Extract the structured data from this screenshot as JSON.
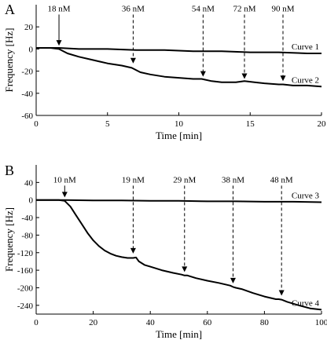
{
  "chart_data": [
    {
      "type": "line",
      "panel": "A",
      "xlabel": "Time [min]",
      "ylabel": "Frequency [Hz]",
      "xlim": [
        0,
        20
      ],
      "ylim": [
        -60,
        40
      ],
      "xticks": [
        0,
        5,
        10,
        15,
        20
      ],
      "yticks": [
        -60,
        -40,
        -20,
        0,
        20
      ],
      "series": [
        {
          "name": "Curve 1",
          "x": [
            0,
            1.0,
            1.6,
            3,
            5,
            7,
            9,
            11,
            13,
            15,
            17,
            19,
            20
          ],
          "y": [
            1,
            1,
            1,
            0,
            0,
            -1,
            -1,
            -2,
            -2,
            -3,
            -3,
            -4,
            -4
          ]
        },
        {
          "name": "Curve 2",
          "x": [
            0,
            1.0,
            1.6,
            2.2,
            3,
            4,
            5,
            6,
            6.7,
            7.3,
            8,
            9,
            10,
            11,
            11.6,
            12.3,
            13,
            14,
            14.6,
            15.3,
            16,
            17,
            17.3,
            18,
            19,
            20
          ],
          "y": [
            1,
            1,
            0,
            -4,
            -7,
            -10,
            -13,
            -15,
            -17,
            -21,
            -23,
            -25,
            -26,
            -27,
            -27,
            -29,
            -30,
            -30,
            -29,
            -30,
            -31,
            -32,
            -32,
            -33,
            -33,
            -34
          ]
        }
      ],
      "annotations": [
        {
          "text": "18 nM",
          "x": 1.6,
          "y_from": 34,
          "y_to": 3,
          "style": "solid"
        },
        {
          "text": "36 nM",
          "x": 6.8,
          "y_from": 34,
          "y_to": -13,
          "style": "dashed"
        },
        {
          "text": "54 nM",
          "x": 11.7,
          "y_from": 34,
          "y_to": -25,
          "style": "dashed"
        },
        {
          "text": "72 nM",
          "x": 14.6,
          "y_from": 34,
          "y_to": -27,
          "style": "dashed"
        },
        {
          "text": "90 nM",
          "x": 17.3,
          "y_from": 34,
          "y_to": -29,
          "style": "dashed"
        }
      ]
    },
    {
      "type": "line",
      "panel": "B",
      "xlabel": "Time [min]",
      "ylabel": "Frequency [Hz]",
      "xlim": [
        0,
        100
      ],
      "ylim": [
        -260,
        80
      ],
      "xticks": [
        0,
        20,
        40,
        60,
        80,
        100
      ],
      "yticks": [
        -240,
        -200,
        -160,
        -120,
        -80,
        -40,
        0,
        40
      ],
      "series": [
        {
          "name": "Curve 3",
          "x": [
            0,
            10,
            20,
            30,
            40,
            50,
            60,
            70,
            80,
            90,
            100
          ],
          "y": [
            0,
            0,
            -1,
            -1,
            -2,
            -2,
            -3,
            -3,
            -4,
            -4,
            -5
          ]
        },
        {
          "name": "Curve 4",
          "x": [
            0,
            8,
            10,
            12,
            14,
            16,
            18,
            20,
            22,
            24,
            26,
            28,
            30,
            32,
            34,
            35,
            36,
            38,
            40,
            44,
            48,
            51,
            52,
            53,
            56,
            60,
            64,
            68,
            69,
            70,
            72,
            76,
            80,
            84,
            85,
            86,
            88,
            92,
            96,
            100
          ],
          "y": [
            0,
            0,
            -2,
            -15,
            -35,
            -55,
            -75,
            -92,
            -105,
            -115,
            -122,
            -127,
            -130,
            -132,
            -132,
            -131,
            -140,
            -148,
            -152,
            -160,
            -166,
            -170,
            -172,
            -172,
            -178,
            -184,
            -189,
            -195,
            -198,
            -200,
            -203,
            -212,
            -220,
            -226,
            -226,
            -227,
            -232,
            -240,
            -247,
            -250
          ]
        }
      ],
      "annotations": [
        {
          "text": "10 nM",
          "x": 10,
          "y_from": 40,
          "y_to": 6,
          "style": "solid"
        },
        {
          "text": "19 nM",
          "x": 34,
          "y_from": 40,
          "y_to": -122,
          "style": "dashed"
        },
        {
          "text": "29 nM",
          "x": 52,
          "y_from": 40,
          "y_to": -164,
          "style": "dashed"
        },
        {
          "text": "38 nM",
          "x": 69,
          "y_from": 40,
          "y_to": -190,
          "style": "dashed"
        },
        {
          "text": "48 nM",
          "x": 86,
          "y_from": 40,
          "y_to": -218,
          "style": "dashed"
        }
      ]
    }
  ]
}
